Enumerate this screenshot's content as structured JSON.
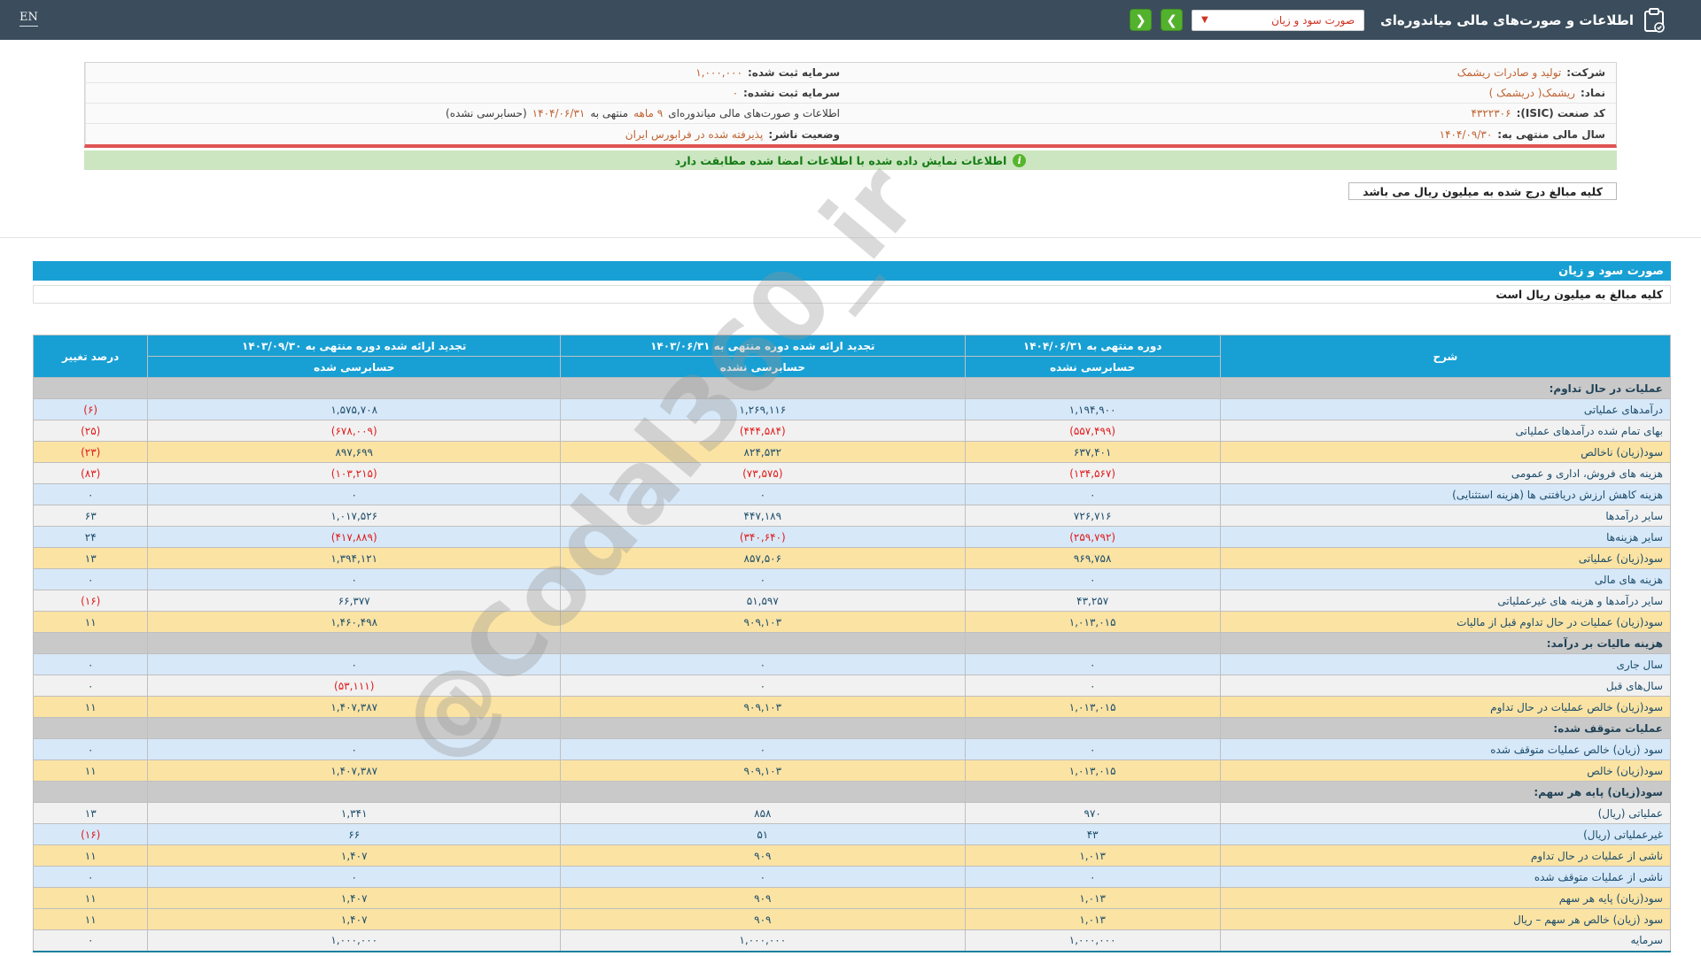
{
  "topbar": {
    "en_label": "EN",
    "title": "اطلاعات و صورت‌های مالی میاندوره‌ای",
    "statement_select_value": "صورت سود و زیان",
    "select_caret": "▼",
    "nav_forward": "❯",
    "nav_back": "❮"
  },
  "info": {
    "company_label": "شرکت:",
    "company_value": "تولید و صادرات ریشمک",
    "symbol_label": "نماد:",
    "symbol_value": "ریشمک( دریشمک )",
    "isic_label": "کد صنعت (ISIC):",
    "isic_value": "۴۳۲۲۳۰۶",
    "fiscal_label": "سال مالی منتهی به:",
    "fiscal_value": "۱۴۰۴/۰۹/۳۰",
    "registered_capital_label": "سرمایه ثبت شده:",
    "registered_capital_value": "۱,۰۰۰,۰۰۰",
    "unregistered_capital_label": "سرمایه ثبت نشده:",
    "unregistered_capital_value": "۰",
    "period_part1": "اطلاعات و صورت‌های مالی میاندوره‌ای",
    "period_months": "۹ ماهه",
    "period_part2": "منتهی به",
    "period_date": "۱۴۰۴/۰۶/۳۱",
    "period_part3": "(حسابرسی نشده)",
    "status_label": "وضعیت ناشر:",
    "status_value": "پذیرفته شده در فرابورس ایران"
  },
  "notices": {
    "signature_match": "اطلاعات نمایش داده شده با اطلاعات امضا شده مطابقت دارد",
    "info_icon_glyph": "i",
    "amounts_note": "کلیه مبالغ درج شده به میلیون ریال می باشد"
  },
  "statement": {
    "section_title": "صورت سود و زیان",
    "unit_note": "کلیه مبالغ به میلیون ریال است",
    "watermark": "@Codal360_ir"
  },
  "table": {
    "headers": {
      "col_desc": "شرح",
      "col_period_current": "دوره منتهی به ۱۴۰۴/۰۶/۳۱",
      "col_restated_mid": "تجدید ارائه شده دوره منتهی به ۱۴۰۳/۰۶/۳۱",
      "col_restated_year": "تجدید ارائه شده دوره منتهی به ۱۴۰۳/۰۹/۳۰",
      "col_change": "درصد تغییر",
      "unaudited": "حسابرسی نشده",
      "audited": "حسابرسی شده"
    },
    "rows": [
      {
        "type": "section",
        "label": "عملیات در حال تداوم:"
      },
      {
        "type": "blue",
        "label": "درآمدهای عملیاتی",
        "v1": "۱,۱۹۴,۹۰۰",
        "v2": "۱,۲۶۹,۱۱۶",
        "v3": "۱,۵۷۵,۷۰۸",
        "change": "(۶)"
      },
      {
        "type": "plain",
        "label": "بهای تمام شده درآمدهای عملیاتی",
        "v1": "(۵۵۷,۴۹۹)",
        "v2": "(۴۴۴,۵۸۴)",
        "v3": "(۶۷۸,۰۰۹)",
        "change": "(۲۵)"
      },
      {
        "type": "yellow",
        "label": "سود(زیان) ناخالص",
        "v1": "۶۳۷,۴۰۱",
        "v2": "۸۲۴,۵۳۲",
        "v3": "۸۹۷,۶۹۹",
        "change": "(۲۳)"
      },
      {
        "type": "plain",
        "label": "هزینه های فروش، اداری و عمومی",
        "v1": "(۱۳۴,۵۶۷)",
        "v2": "(۷۳,۵۷۵)",
        "v3": "(۱۰۳,۲۱۵)",
        "change": "(۸۳)"
      },
      {
        "type": "blue",
        "label": "هزینه کاهش ارزش دریافتنی ها (هزینه استثنایی)",
        "v1": "۰",
        "v2": "۰",
        "v3": "۰",
        "change": "۰"
      },
      {
        "type": "plain",
        "label": "سایر درآمدها",
        "v1": "۷۲۶,۷۱۶",
        "v2": "۴۴۷,۱۸۹",
        "v3": "۱,۰۱۷,۵۲۶",
        "change": "۶۳"
      },
      {
        "type": "blue",
        "label": "سایر هزینه‌ها",
        "v1": "(۲۵۹,۷۹۲)",
        "v2": "(۳۴۰,۶۴۰)",
        "v3": "(۴۱۷,۸۸۹)",
        "change": "۲۴"
      },
      {
        "type": "yellow",
        "label": "سود(زیان) عملیاتی",
        "v1": "۹۶۹,۷۵۸",
        "v2": "۸۵۷,۵۰۶",
        "v3": "۱,۳۹۴,۱۲۱",
        "change": "۱۳"
      },
      {
        "type": "blue",
        "label": "هزینه های مالی",
        "v1": "۰",
        "v2": "۰",
        "v3": "۰",
        "change": "۰"
      },
      {
        "type": "plain",
        "label": "سایر درآمدها و هزینه های غیرعملیاتی",
        "v1": "۴۳,۲۵۷",
        "v2": "۵۱,۵۹۷",
        "v3": "۶۶,۳۷۷",
        "change": "(۱۶)"
      },
      {
        "type": "yellow",
        "label": "سود(زیان) عملیات در حال تداوم قبل از مالیات",
        "v1": "۱,۰۱۳,۰۱۵",
        "v2": "۹۰۹,۱۰۳",
        "v3": "۱,۴۶۰,۴۹۸",
        "change": "۱۱"
      },
      {
        "type": "section",
        "label": "هزینه مالیات بر درآمد:"
      },
      {
        "type": "blue",
        "label": "سال جاری",
        "v1": "۰",
        "v2": "۰",
        "v3": "۰",
        "change": "۰"
      },
      {
        "type": "plain",
        "label": "سال‌های قبل",
        "v1": "۰",
        "v2": "۰",
        "v3": "(۵۳,۱۱۱)",
        "change": "۰"
      },
      {
        "type": "yellow",
        "label": "سود(زیان) خالص عملیات در حال تداوم",
        "v1": "۱,۰۱۳,۰۱۵",
        "v2": "۹۰۹,۱۰۳",
        "v3": "۱,۴۰۷,۳۸۷",
        "change": "۱۱"
      },
      {
        "type": "section",
        "label": "عملیات متوقف شده:"
      },
      {
        "type": "blue",
        "label": "سود (زیان) خالص عملیات متوقف شده",
        "v1": "۰",
        "v2": "۰",
        "v3": "۰",
        "change": "۰"
      },
      {
        "type": "yellow",
        "label": "سود(زیان) خالص",
        "v1": "۱,۰۱۳,۰۱۵",
        "v2": "۹۰۹,۱۰۳",
        "v3": "۱,۴۰۷,۳۸۷",
        "change": "۱۱"
      },
      {
        "type": "section",
        "label": "سود(زیان) پایه هر سهم:"
      },
      {
        "type": "plain",
        "label": "عملیاتی (ریال)",
        "v1": "۹۷۰",
        "v2": "۸۵۸",
        "v3": "۱,۳۴۱",
        "change": "۱۳"
      },
      {
        "type": "blue",
        "label": "غیرعملیاتی (ریال)",
        "v1": "۴۳",
        "v2": "۵۱",
        "v3": "۶۶",
        "change": "(۱۶)"
      },
      {
        "type": "yellow",
        "label": "ناشی از عملیات در حال تداوم",
        "v1": "۱,۰۱۳",
        "v2": "۹۰۹",
        "v3": "۱,۴۰۷",
        "change": "۱۱"
      },
      {
        "type": "blue",
        "label": "ناشی از عملیات متوقف شده",
        "v1": "۰",
        "v2": "۰",
        "v3": "۰",
        "change": "۰"
      },
      {
        "type": "yellow",
        "label": "سود(زیان) پایه هر سهم",
        "v1": "۱,۰۱۳",
        "v2": "۹۰۹",
        "v3": "۱,۴۰۷",
        "change": "۱۱"
      },
      {
        "type": "yellow",
        "label": "سود (زیان) خالص هر سهم – ریال",
        "v1": "۱,۰۱۳",
        "v2": "۹۰۹",
        "v3": "۱,۴۰۷",
        "change": "۱۱"
      },
      {
        "type": "plain",
        "label": "سرمایه",
        "v1": "۱,۰۰۰,۰۰۰",
        "v2": "۱,۰۰۰,۰۰۰",
        "v3": "۱,۰۰۰,۰۰۰",
        "change": "۰"
      }
    ]
  }
}
